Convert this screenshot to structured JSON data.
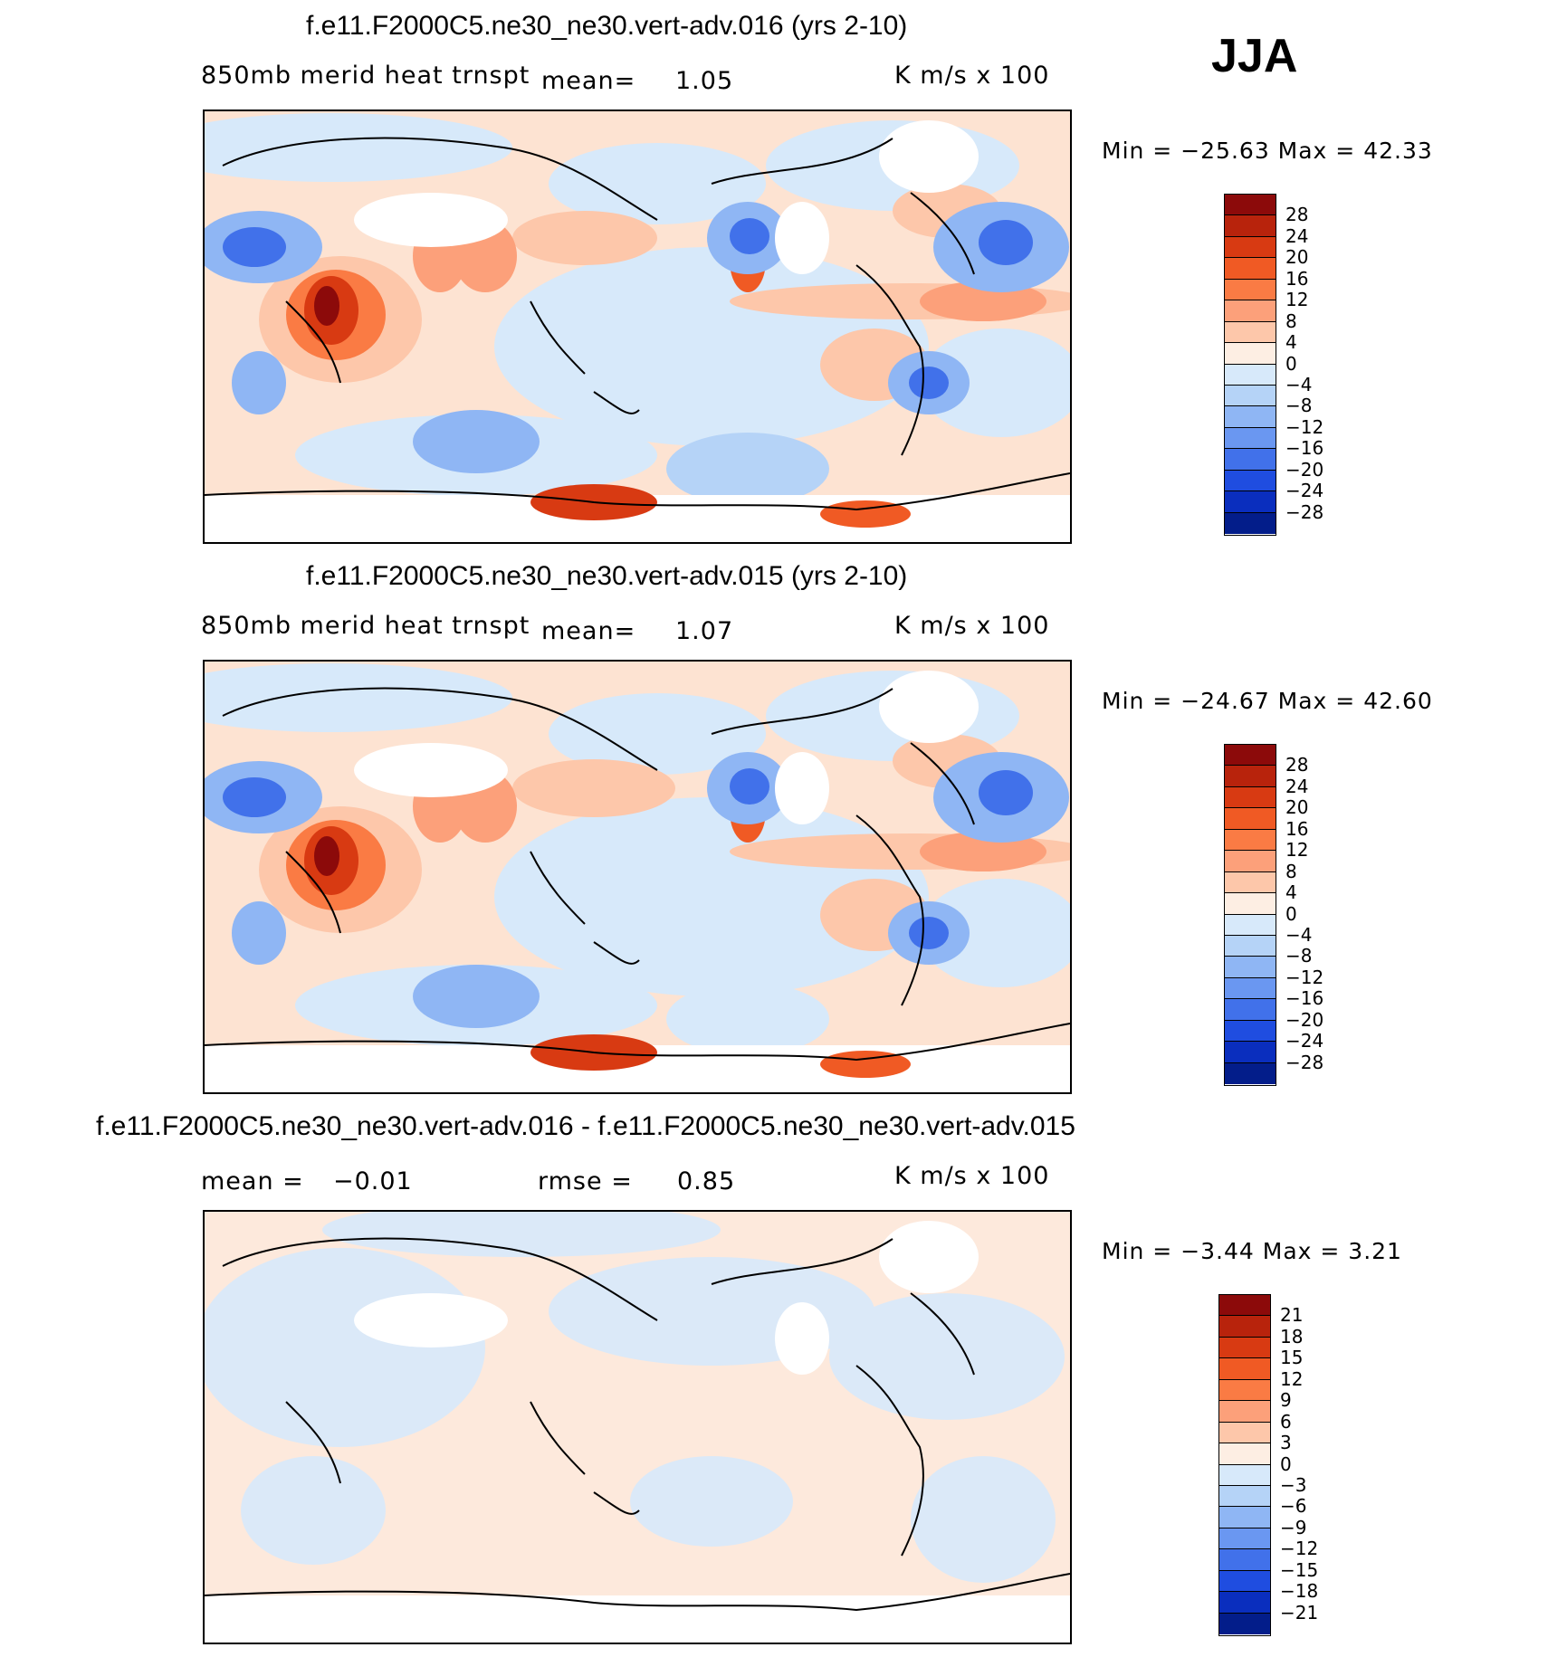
{
  "season": "JJA",
  "units_label": "K  m/s  x  100",
  "panels": [
    {
      "title": "f.e11.F2000C5.ne30_ne30.vert-adv.016 (yrs 2-10)",
      "subtitle": "850mb  merid  heat  trnspt",
      "stat1_label": "mean=",
      "stat1_value": "1.05",
      "min_text": "Min  =  −25.63  Max  =    42.33",
      "colorbar_ticks": [
        "28",
        "24",
        "20",
        "16",
        "12",
        "8",
        "4",
        "0",
        "−4",
        "−8",
        "−12",
        "−16",
        "−20",
        "−24",
        "−28"
      ]
    },
    {
      "title": "f.e11.F2000C5.ne30_ne30.vert-adv.015 (yrs 2-10)",
      "subtitle": "850mb  merid  heat  trnspt",
      "stat1_label": "mean=",
      "stat1_value": "1.07",
      "min_text": "Min  =  −24.67  Max  =    42.60",
      "colorbar_ticks": [
        "28",
        "24",
        "20",
        "16",
        "12",
        "8",
        "4",
        "0",
        "−4",
        "−8",
        "−12",
        "−16",
        "−20",
        "−24",
        "−28"
      ]
    },
    {
      "title": "f.e11.F2000C5.ne30_ne30.vert-adv.016 - f.e11.F2000C5.ne30_ne30.vert-adv.015",
      "stat1_label": "mean  =",
      "stat1_value": "−0.01",
      "stat2_label": "rmse  =",
      "stat2_value": "0.85",
      "min_text": "Min  =    −3.44  Max  =     3.21",
      "colorbar_ticks": [
        "21",
        "18",
        "15",
        "12",
        "9",
        "6",
        "3",
        "0",
        "−3",
        "−6",
        "−9",
        "−12",
        "−15",
        "−18",
        "−21"
      ]
    }
  ],
  "colorbar_colors": [
    "#8c0a0a",
    "#b8230c",
    "#d83a12",
    "#f05a24",
    "#fa7b44",
    "#fca07a",
    "#fdc7aa",
    "#fdeee3",
    "#d7e9fa",
    "#b5d3f7",
    "#8fb6f4",
    "#6a97f1",
    "#4171ea",
    "#1f4de0",
    "#0a2ebe",
    "#031d8a"
  ]
}
